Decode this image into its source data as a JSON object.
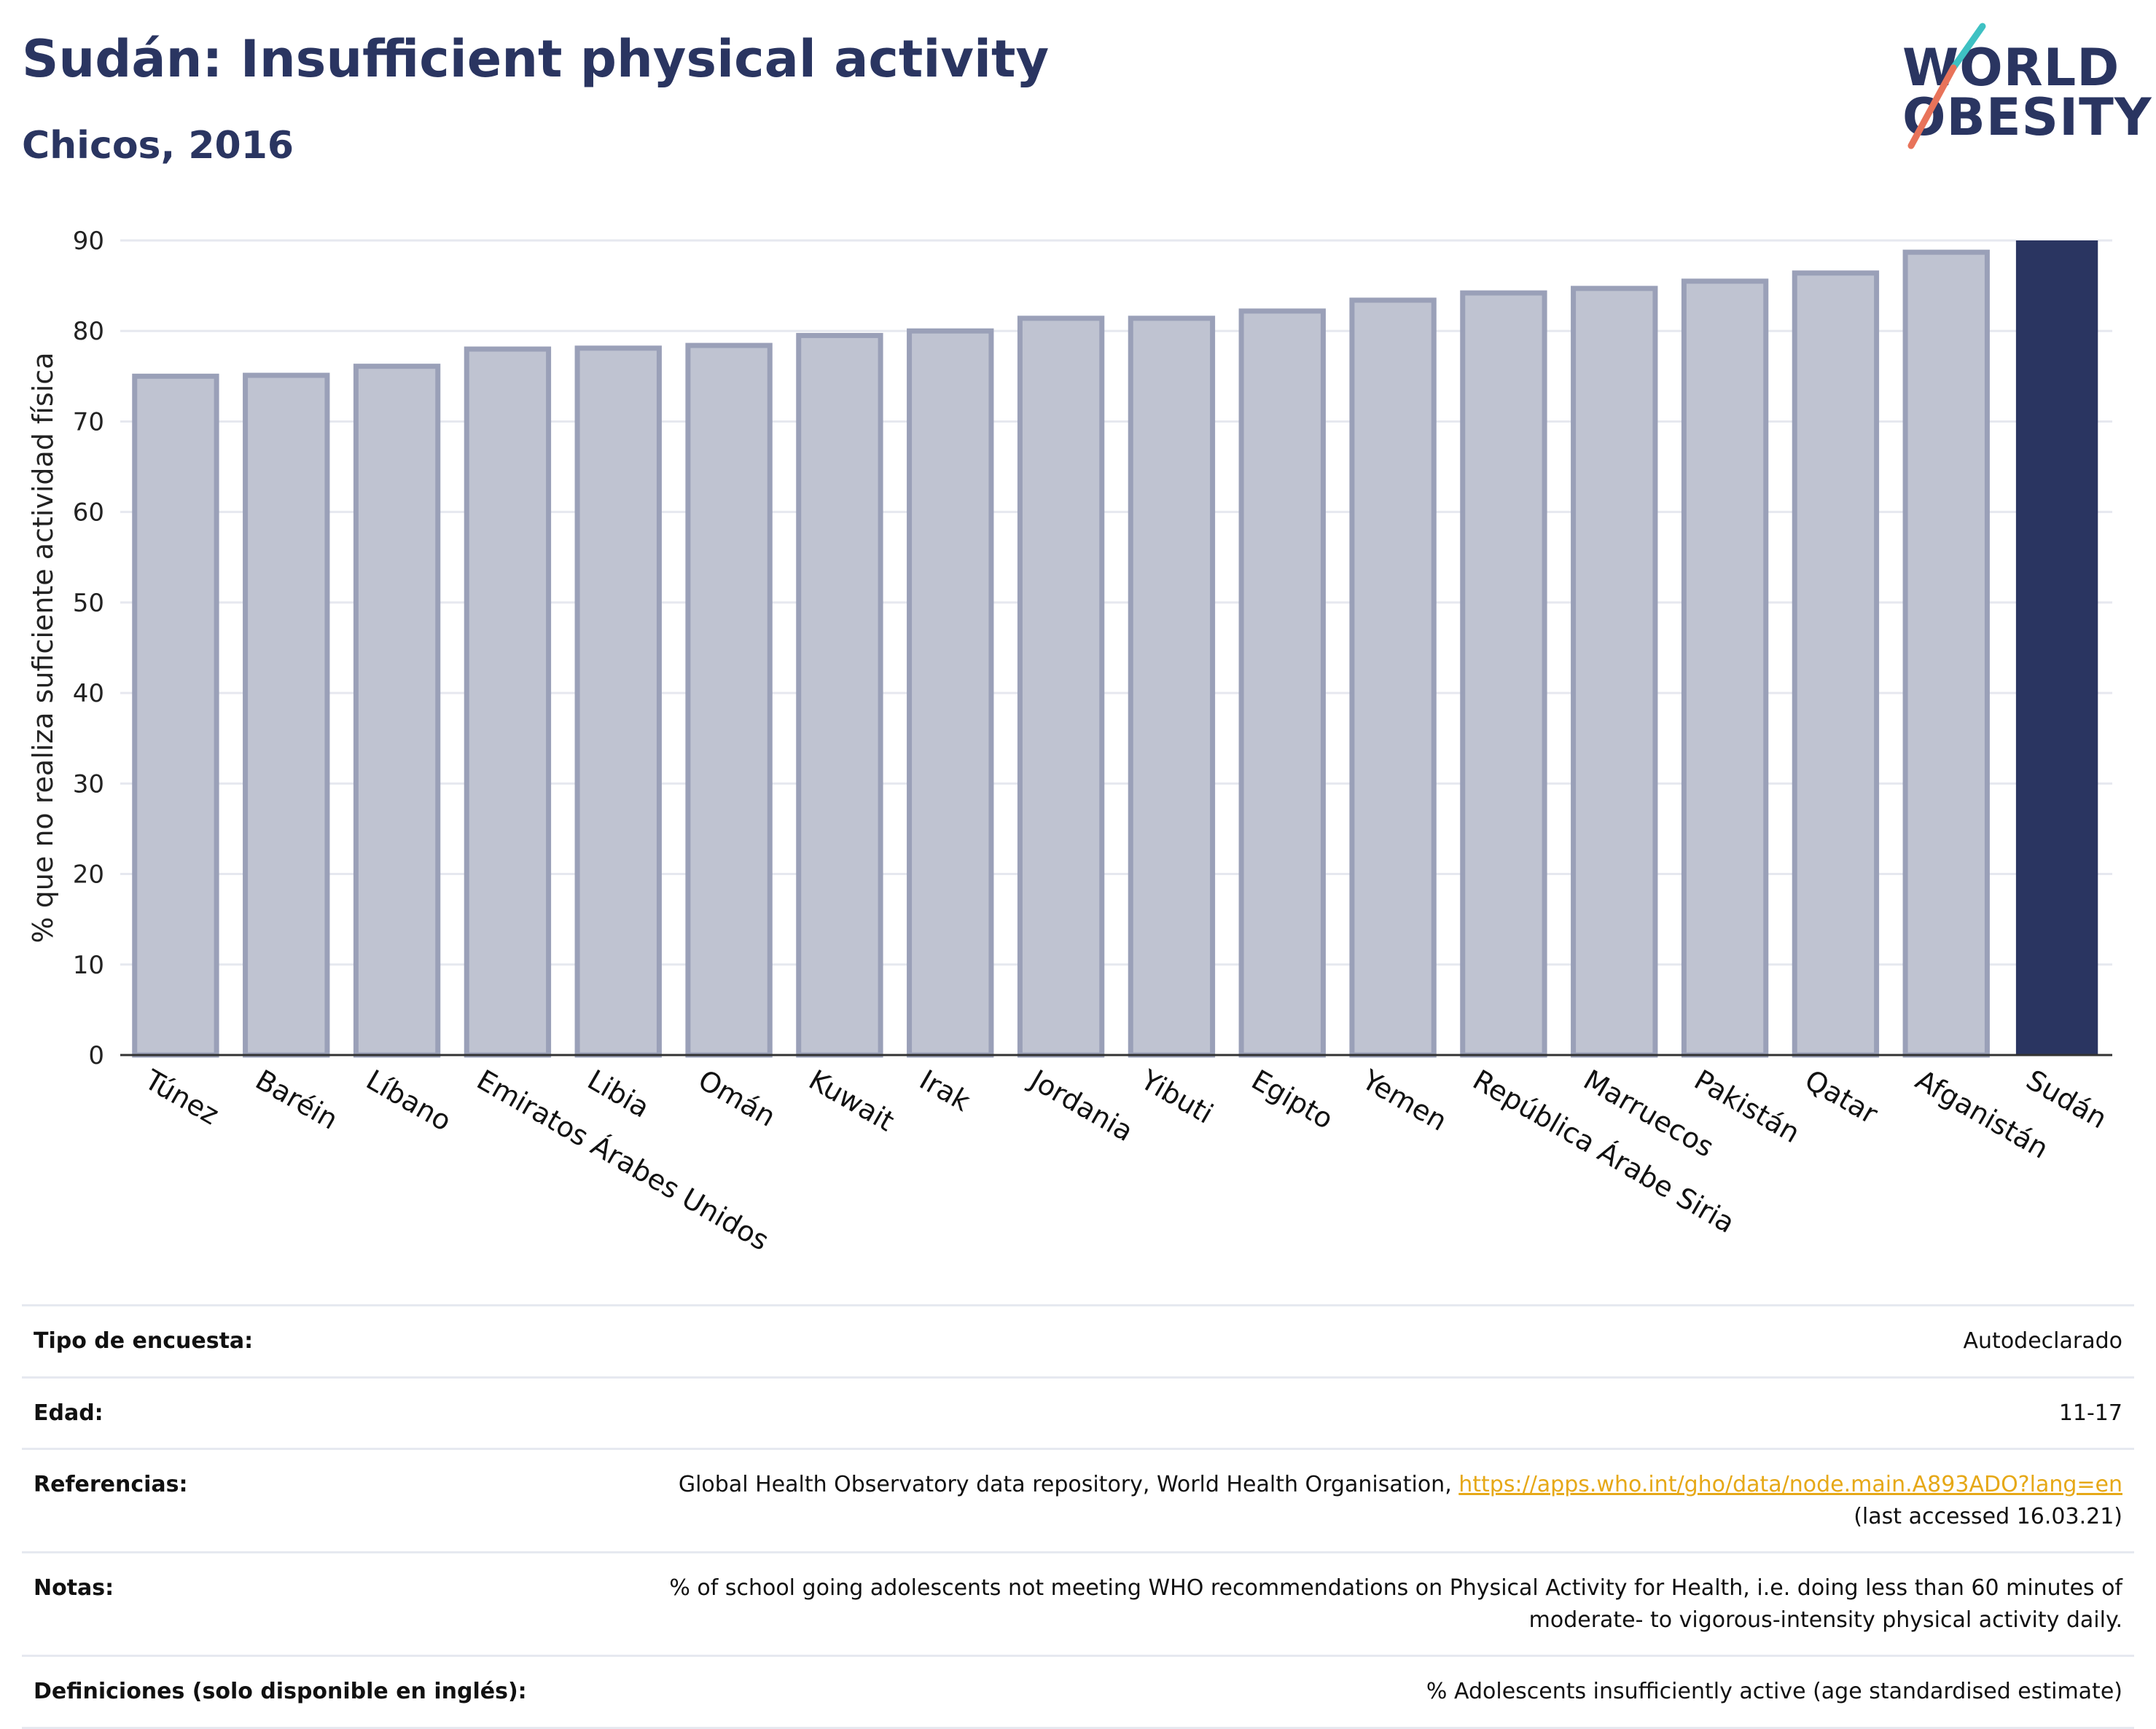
{
  "header": {
    "title": "Sudán: Insufficient physical activity",
    "subtitle": "Chicos, 2016"
  },
  "logo": {
    "line1": "WORLD",
    "line2": "OBESITY"
  },
  "colors": {
    "primary": "#2a3561",
    "bar_fill": "#bfc3d1",
    "bar_stroke": "#9aa0b8",
    "highlight": "#2a3561",
    "grid": "#e6e8ef",
    "link": "#e6a817",
    "logo_slash_top": "#3ec1c3",
    "logo_slash_bottom": "#e8735a"
  },
  "chart_data": {
    "type": "bar",
    "title": "Sudán: Insufficient physical activity",
    "subtitle": "Chicos, 2016",
    "xlabel": "",
    "ylabel": "% que no realiza suficiente actividad física",
    "ylim": [
      0,
      90
    ],
    "yticks": [
      0,
      10,
      20,
      30,
      40,
      50,
      60,
      70,
      80,
      90
    ],
    "grid": true,
    "categories": [
      "Túnez",
      "Baréin",
      "Líbano",
      "Emiratos Árabes Unidos",
      "Libia",
      "Omán",
      "Kuwait",
      "Irak",
      "Jordania",
      "Yibuti",
      "Egipto",
      "Yemen",
      "República Árabe Siria",
      "Marruecos",
      "Pakistán",
      "Qatar",
      "Afganistán",
      "Sudán"
    ],
    "values": [
      75.0,
      75.1,
      76.1,
      78.0,
      78.1,
      78.4,
      79.5,
      80.0,
      81.4,
      81.4,
      82.2,
      83.4,
      84.2,
      84.7,
      85.5,
      86.4,
      88.7,
      90.1
    ],
    "highlight": "Sudán"
  },
  "info": {
    "rows": [
      {
        "label": "Tipo de encuesta:",
        "value": "Autodeclarado"
      },
      {
        "label": "Edad:",
        "value": "11-17"
      },
      {
        "label": "Referencias:",
        "value": "Global Health Observatory data repository, World Health Organisation, ",
        "link": "https://apps.who.int/gho/data/node.main.A893ADO?lang=en",
        "value2": "(last accessed 16.03.21)"
      },
      {
        "label": "Notas:",
        "value": "% of school going adolescents not meeting WHO recommendations on Physical Activity for Health, i.e. doing less than 60 minutes of moderate- to vigorous-intensity physical activity daily."
      },
      {
        "label": "Definiciones (solo disponible en inglés):",
        "value": "% Adolescents insufficiently active (age standardised estimate)"
      }
    ]
  }
}
